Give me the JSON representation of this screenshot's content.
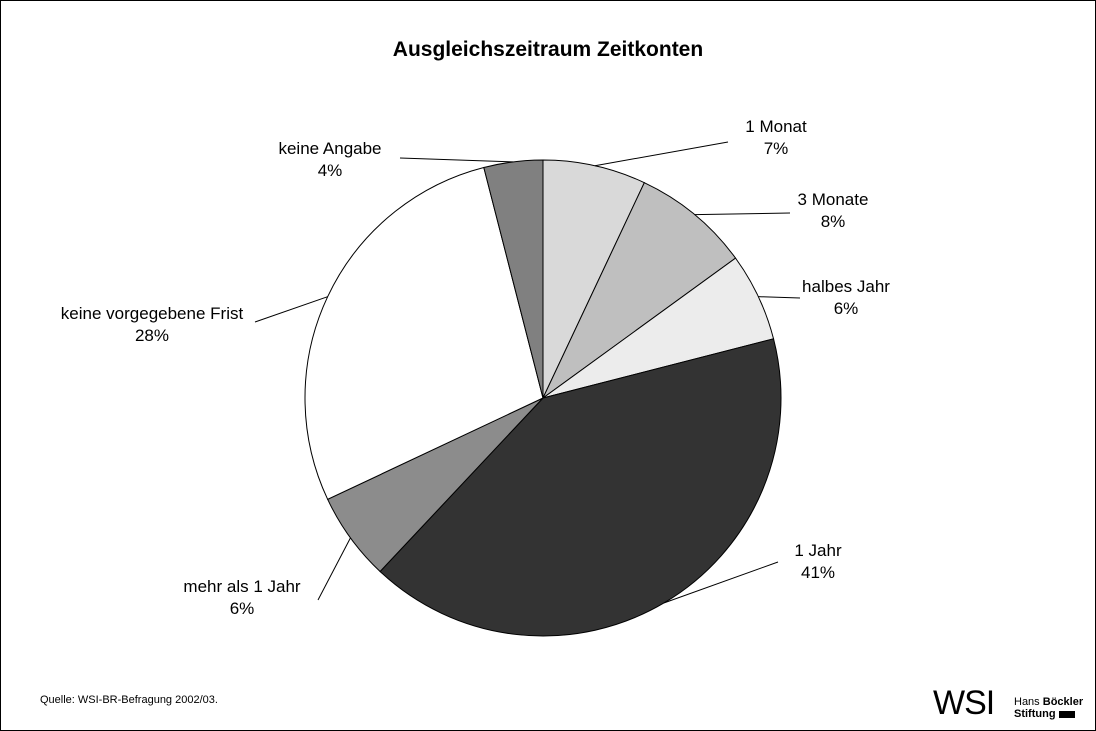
{
  "chart_data": {
    "type": "pie",
    "title": "Ausgleichszeitraum Zeitkonten",
    "categories": [
      "1 Monat",
      "3 Monate",
      "halbes Jahr",
      "1 Jahr",
      "mehr als 1 Jahr",
      "keine vorgegebene Frist",
      "keine Angabe"
    ],
    "values": [
      7,
      8,
      6,
      41,
      6,
      28,
      4
    ],
    "value_labels": [
      "7%",
      "8%",
      "6%",
      "41%",
      "6%",
      "28%",
      "4%"
    ],
    "colors": [
      "#d9d9d9",
      "#bfbfbf",
      "#ececec",
      "#333333",
      "#8c8c8c",
      "#ffffff",
      "#808080"
    ]
  },
  "source": "Quelle: WSI-BR-Befragung 2002/03.",
  "logo": {
    "mark": "WSI",
    "hans": "Hans",
    "boeckler": "Böckler",
    "stiftung": "Stiftung"
  }
}
